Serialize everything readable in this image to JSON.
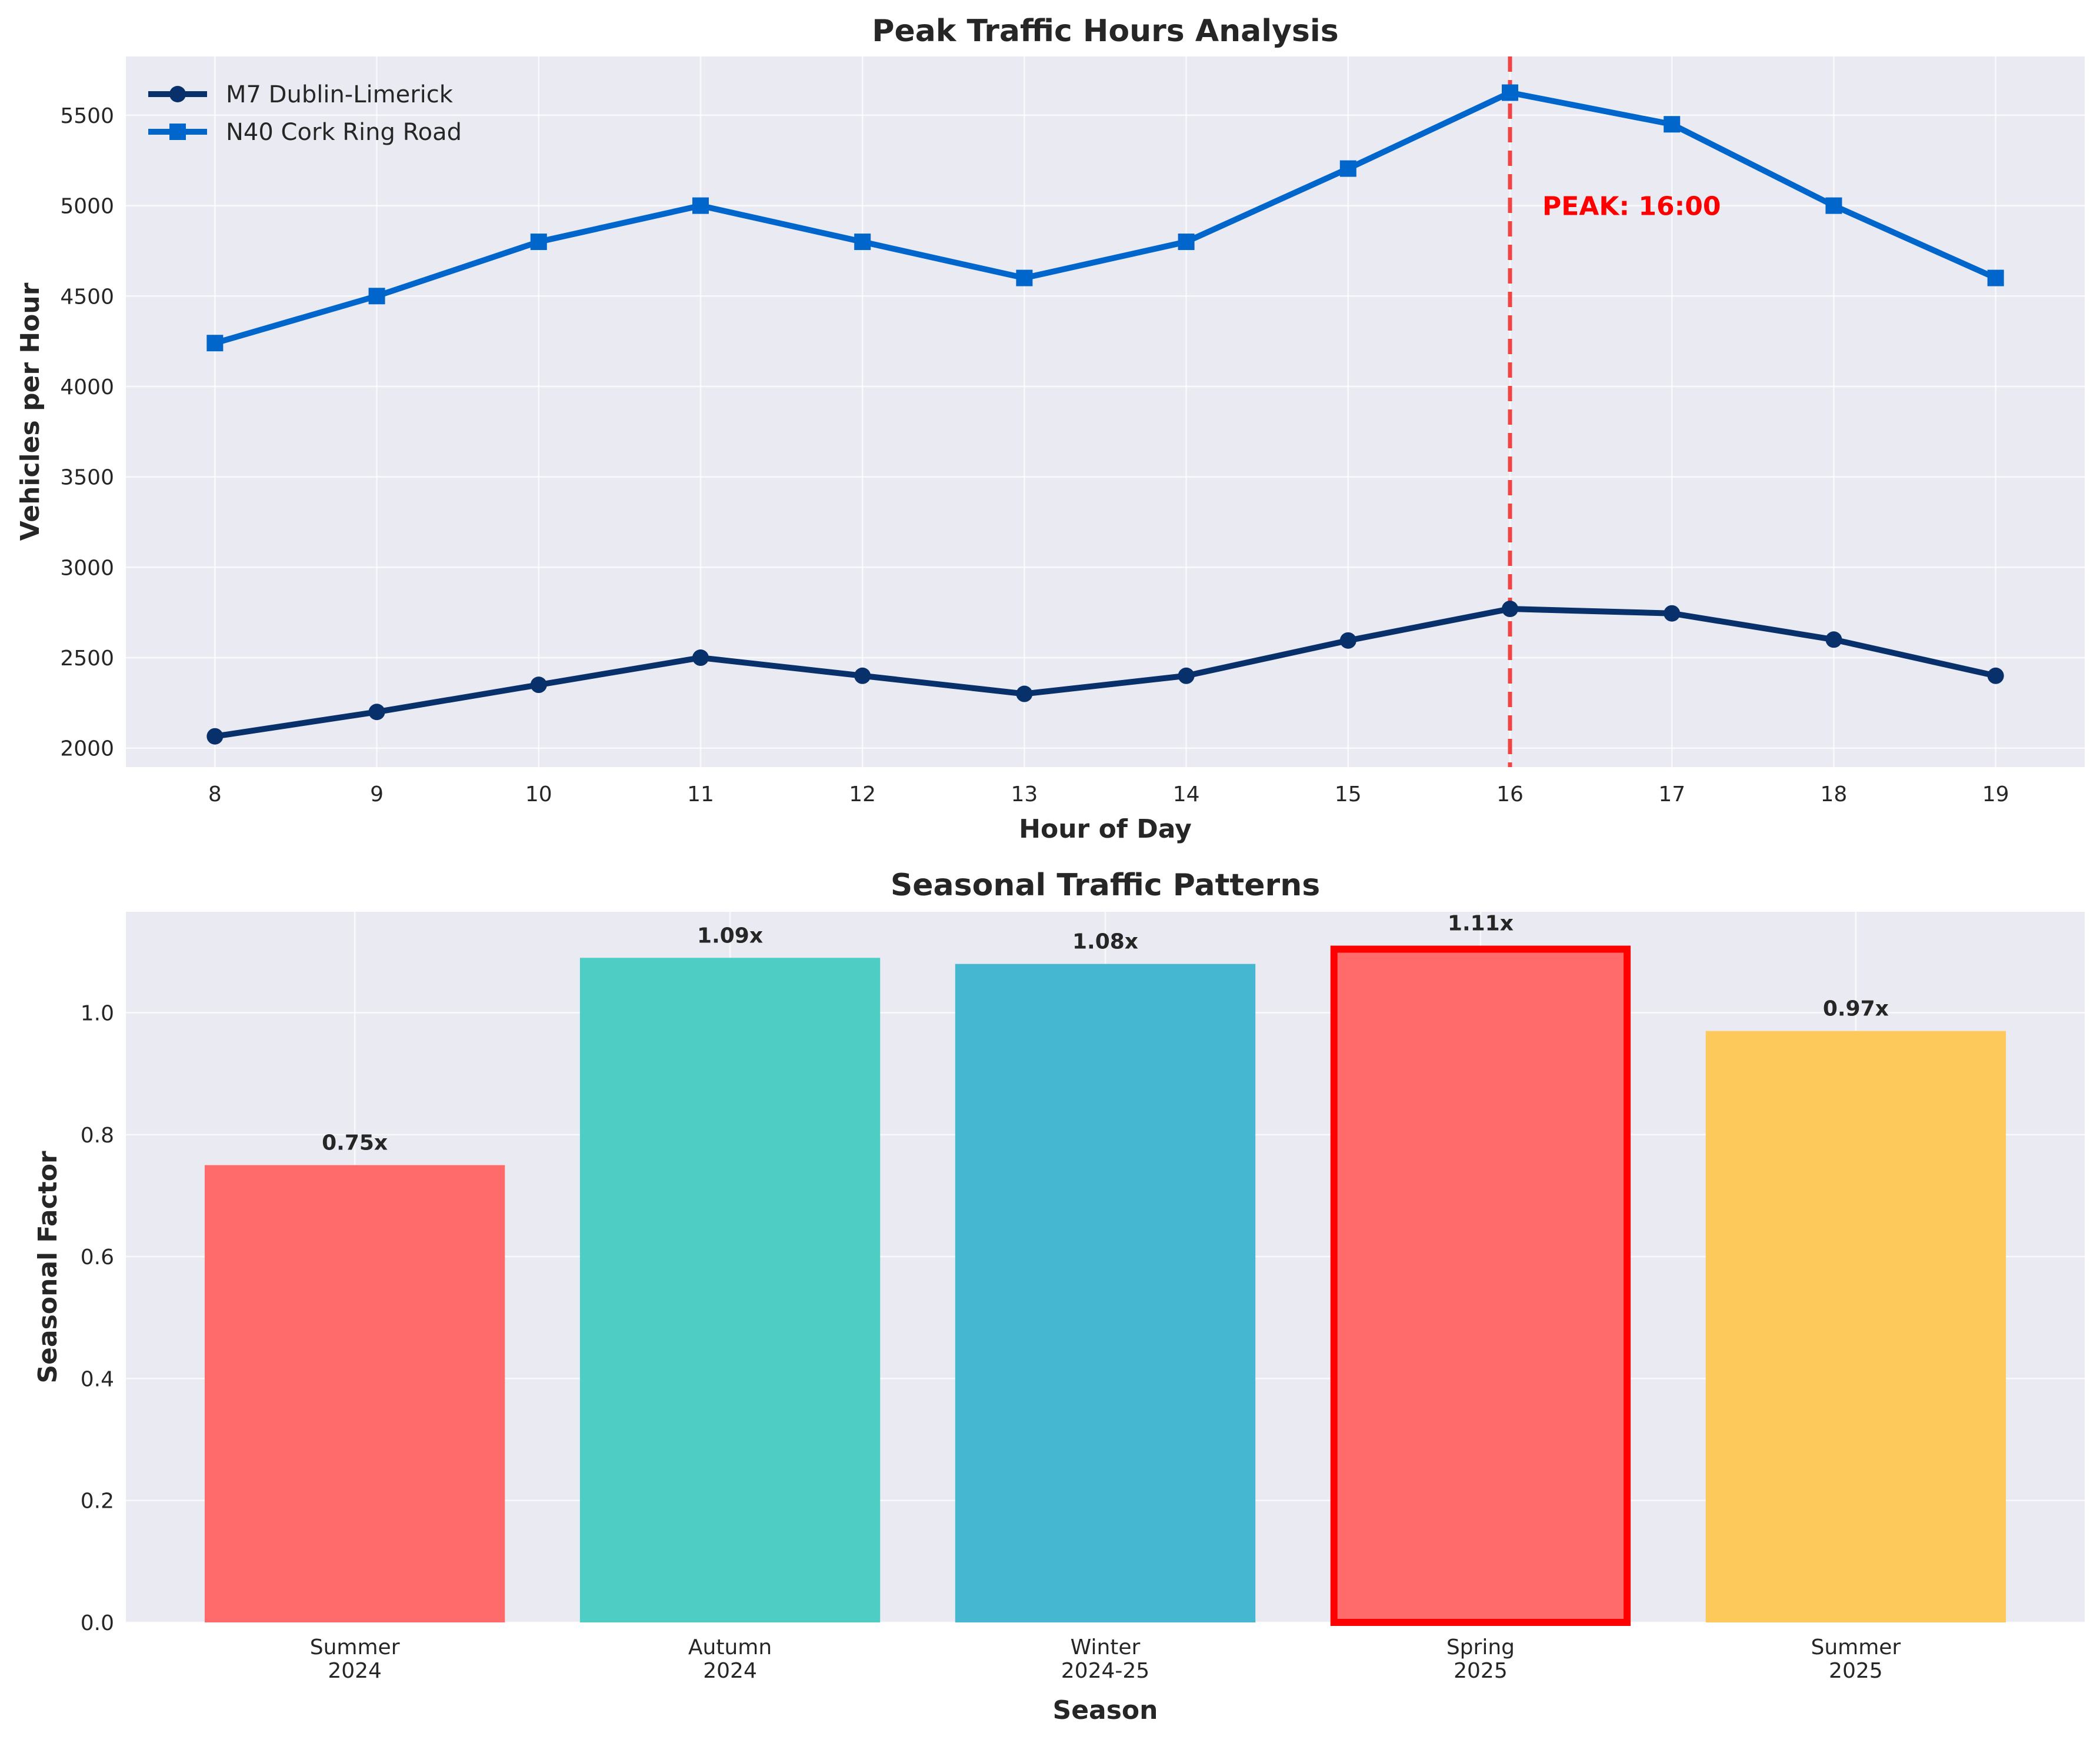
{
  "chart_data": [
    {
      "type": "line",
      "title": "Peak Traffic Hours Analysis",
      "xlabel": "Hour of Day",
      "ylabel": "Vehicles per Hour",
      "x": [
        8,
        9,
        10,
        11,
        12,
        13,
        14,
        15,
        16,
        17,
        18,
        19
      ],
      "xlim": [
        7.45,
        19.55
      ],
      "ylim": [
        1895,
        5825
      ],
      "yticks": [
        2000,
        2500,
        3000,
        3500,
        4000,
        4500,
        5000,
        5500
      ],
      "series": [
        {
          "name": "M7 Dublin-Limerick",
          "marker": "circle",
          "color": "#08306b",
          "values": [
            2065,
            2200,
            2350,
            2500,
            2400,
            2300,
            2400,
            2595,
            2770,
            2745,
            2600,
            2400
          ]
        },
        {
          "name": "N40 Cork Ring Road",
          "marker": "square",
          "color": "#0066cc",
          "values": [
            4240,
            4500,
            4800,
            5000,
            4800,
            4600,
            4800,
            5205,
            5625,
            5450,
            5000,
            4600
          ]
        }
      ],
      "peak_line": {
        "x": 16,
        "color": "#f03232",
        "style": "dashed"
      },
      "annotation": {
        "text": "PEAK: 16:00",
        "x": 16.2,
        "y": 5000,
        "color": "#ff0000"
      },
      "legend": {
        "placement": "top-left"
      },
      "grid": true
    },
    {
      "type": "bar",
      "title": "Seasonal Traffic Patterns",
      "xlabel": "Season",
      "ylabel": "Seasonal Factor",
      "categories": [
        [
          "Summer",
          "2024"
        ],
        [
          "Autumn",
          "2024"
        ],
        [
          "Winter",
          "2024-25"
        ],
        [
          "Spring",
          "2025"
        ],
        [
          "Summer",
          "2025"
        ]
      ],
      "values": [
        0.75,
        1.09,
        1.08,
        1.11,
        0.97
      ],
      "labels": [
        "0.75x",
        "1.09x",
        "1.08x",
        "1.11x",
        "0.97x"
      ],
      "colors": [
        "#ff6b6b",
        "#4ecdc4",
        "#45b7d1",
        "#ff6b6b",
        "#fcc95a"
      ],
      "highlight": {
        "index": 3,
        "edge_color": "#ff0000"
      },
      "ylim": [
        0,
        1.1655
      ],
      "yticks": [
        0.0,
        0.2,
        0.4,
        0.6,
        0.8,
        1.0
      ],
      "grid": true
    }
  ]
}
